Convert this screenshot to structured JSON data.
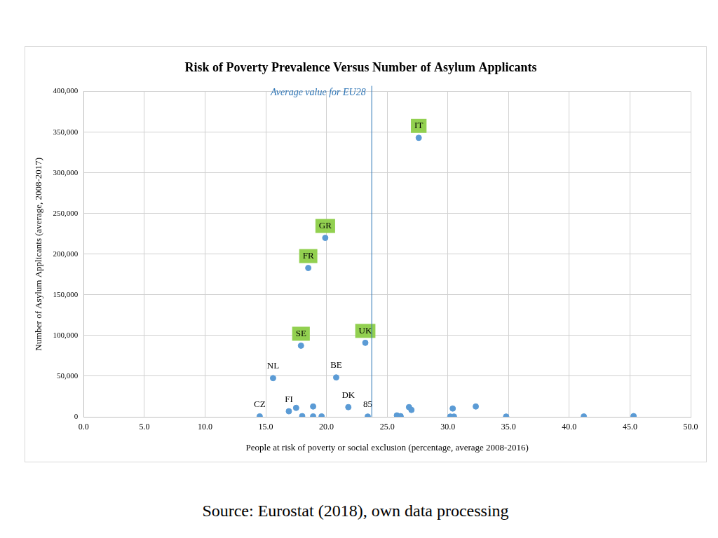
{
  "chart_data": {
    "type": "scatter",
    "title": "Risk of Poverty Prevalence Versus Number of Asylum Applicants",
    "x_label": "People at risk of poverty or social exclusion (percentage, average 2008-2016)",
    "y_label": "Number of Asylum Applicants (average, 2008-2017)",
    "source": "Source: Eurostat (2018), own data processing",
    "color": "#5b9bd5",
    "marker": "circle",
    "grid": true,
    "x": [
      27.6,
      19.9,
      18.5,
      17.9,
      23.2,
      15.6,
      20.8,
      21.8,
      23.4,
      14.5,
      16.9,
      17.5,
      18.0,
      18.9,
      18.9,
      19.6,
      25.8,
      26.1,
      26.1,
      26.8,
      27.0,
      30.4,
      30.2,
      30.5,
      32.3,
      34.8,
      41.2,
      45.3
    ],
    "values": [
      343000,
      220000,
      183000,
      87500,
      91000,
      47600,
      48400,
      11900,
      300,
      500,
      6800,
      11000,
      800,
      12700,
      500,
      500,
      1700,
      800,
      300,
      11900,
      8500,
      10200,
      300,
      300,
      12700,
      300,
      400,
      800
    ],
    "labels": [
      {
        "text": "IT",
        "color": "#92d050"
      },
      {
        "text": "GR",
        "color": "#92d050"
      },
      {
        "text": "FR",
        "color": "#92d050"
      },
      {
        "text": "SE",
        "color": "#92d050"
      },
      {
        "text": "UK",
        "color": "#92d050"
      },
      "NL",
      "BE",
      "DK",
      "85",
      "CZ",
      "FI",
      null,
      null,
      null,
      null,
      null,
      null,
      null,
      null,
      null,
      null,
      null,
      null,
      null,
      null,
      null,
      null,
      null
    ],
    "annotations": [
      {
        "text": "Average value for EU28",
        "x": 23.7,
        "color": "#2e75b6"
      }
    ],
    "xlim": [
      0,
      50
    ],
    "xticks": [
      {
        "value": 0,
        "label": "0.0"
      },
      {
        "value": 5,
        "label": "5.0"
      },
      {
        "value": 10,
        "label": "10.0"
      },
      {
        "value": 15,
        "label": "15.0"
      },
      {
        "value": 20,
        "label": "20.0"
      },
      {
        "value": 25,
        "label": "25.0"
      },
      {
        "value": 30,
        "label": "30.0"
      },
      {
        "value": 35,
        "label": "35.0"
      },
      {
        "value": 40,
        "label": "40.0"
      },
      {
        "value": 45,
        "label": "45.0"
      },
      {
        "value": 50,
        "label": "50.0"
      }
    ],
    "ylim": [
      0,
      400000
    ],
    "yticks": [
      0,
      {
        "value": 50000,
        "label": "50,000"
      },
      {
        "value": 100000,
        "label": "100,000"
      },
      {
        "value": 150000,
        "label": "150,000"
      },
      {
        "value": 200000,
        "label": "200,000"
      },
      {
        "value": 250000,
        "label": "250,000"
      },
      {
        "value": 300000,
        "label": "300,000"
      },
      {
        "value": 350000,
        "label": "350,000"
      },
      {
        "value": 400000,
        "label": "400,000"
      }
    ]
  }
}
